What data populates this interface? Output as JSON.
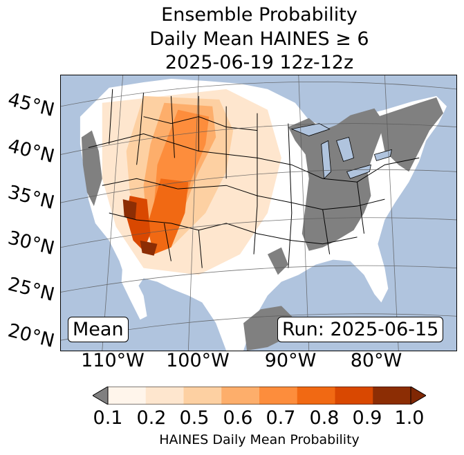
{
  "title": {
    "line1": "Ensemble Probability",
    "line2": "Daily Mean HAINES ≥ 6",
    "line3": "2025-06-19 12z-12z"
  },
  "map": {
    "lat_labels": [
      "45°N",
      "40°N",
      "35°N",
      "30°N",
      "25°N",
      "20°N"
    ],
    "lon_labels": [
      "110°W",
      "100°W",
      "90°W",
      "80°W"
    ],
    "stat_box": "Mean",
    "run_box": "Run: 2025-06-15",
    "colors": {
      "ocean": "#b0c4de",
      "land_missing": "#808080",
      "land_low": "#ffffff"
    }
  },
  "colorbar": {
    "ticks": [
      "0.1",
      "0.2",
      "0.5",
      "0.6",
      "0.7",
      "0.8",
      "0.9",
      "1.0"
    ],
    "colors": [
      "#fff5eb",
      "#fee6ce",
      "#fdd0a2",
      "#fdae6b",
      "#fd8d3c",
      "#f16913",
      "#d94801",
      "#8c2d04"
    ],
    "under_color": "#808080",
    "over_color": "#7f2704",
    "label": "HAINES Daily Mean Probability"
  }
}
